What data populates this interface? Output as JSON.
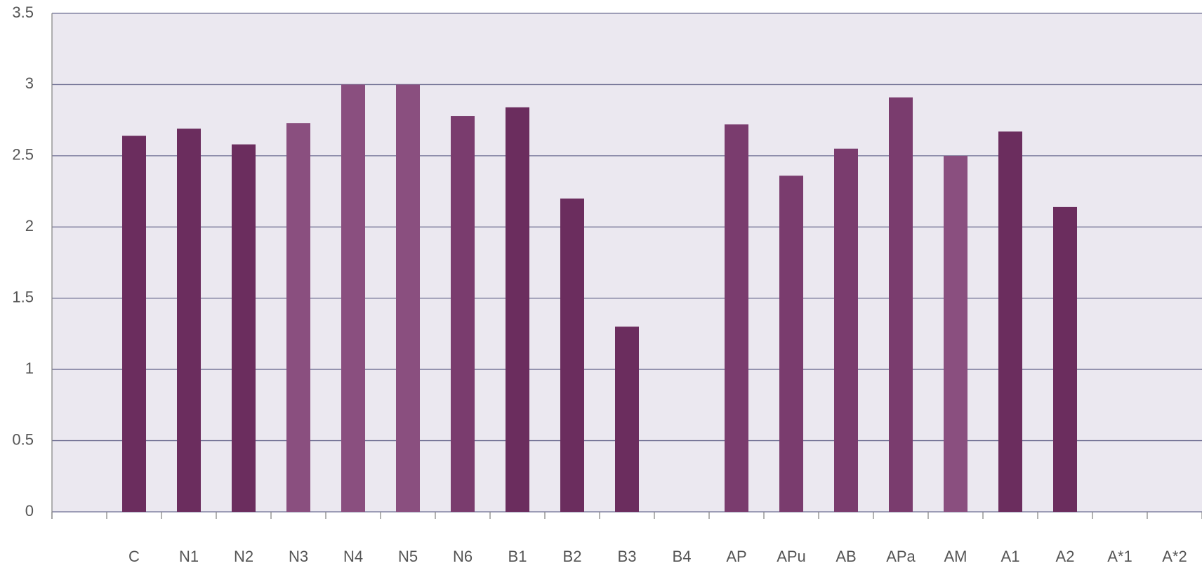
{
  "chart_data": {
    "type": "bar",
    "categories": [
      "C",
      "N1",
      "N2",
      "N3",
      "N4",
      "N5",
      "N6",
      "B1",
      "B2",
      "B3",
      "B4",
      "AP",
      "APu",
      "AB",
      "APa",
      "AM",
      "A1",
      "A2",
      "A*1",
      "A*2"
    ],
    "values": [
      2.64,
      2.69,
      2.58,
      2.73,
      3.0,
      3.0,
      2.78,
      2.84,
      2.2,
      1.3,
      0,
      2.72,
      2.36,
      2.55,
      2.91,
      2.5,
      2.67,
      2.14,
      0,
      0
    ],
    "colors": [
      "#6b2d5e",
      "#6b2d5e",
      "#6b2d5e",
      "#8a4f7f",
      "#8a4f7f",
      "#8a4f7f",
      "#7a3c6e",
      "#6b2d5e",
      "#6b2d5e",
      "#6b2d5e",
      "#6b2d5e",
      "#7a3c6e",
      "#7a3c6e",
      "#7a3c6e",
      "#7a3c6e",
      "#8a4f7f",
      "#6b2d5e",
      "#6b2d5e",
      "#6b2d5e",
      "#6b2d5e"
    ],
    "ylim": [
      0,
      3.5
    ],
    "yticks": [
      0,
      0.5,
      1,
      1.5,
      2,
      2.5,
      3,
      3.5
    ],
    "grid": true
  }
}
